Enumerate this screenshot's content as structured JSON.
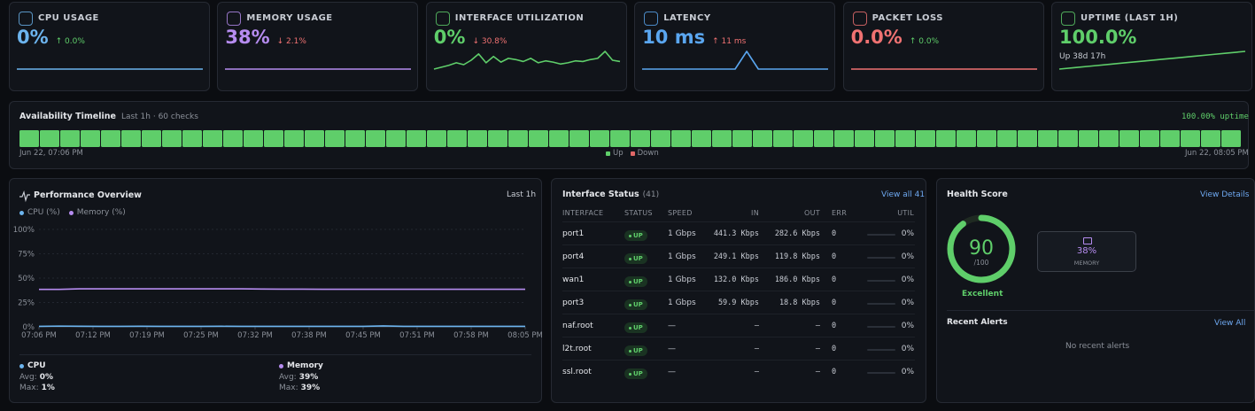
{
  "metrics": [
    {
      "label": "CPU USAGE",
      "value": "0%",
      "delta": "↑ 0.0%",
      "delta_color": "#5fce6a",
      "color": "#6cb4ee",
      "spark": [
        0,
        0,
        0,
        0,
        0,
        0,
        0,
        0,
        0,
        0,
        0,
        0
      ]
    },
    {
      "label": "MEMORY USAGE",
      "value": "38%",
      "delta": "↓ 2.1%",
      "delta_color": "#f07272",
      "color": "#b68cf0",
      "spark": [
        38,
        38,
        38,
        38,
        38,
        38,
        38,
        38,
        38,
        38,
        38,
        38
      ]
    },
    {
      "label": "INTERFACE UTILIZATION",
      "value": "0%",
      "delta": "↓ 30.8%",
      "delta_color": "#f07272",
      "color": "#5fce6a",
      "spark": [
        2,
        5,
        8,
        12,
        9,
        16,
        26,
        12,
        22,
        13,
        19,
        17,
        14,
        19,
        12,
        15,
        13,
        10,
        12,
        15,
        14,
        17,
        19,
        30,
        16,
        14
      ]
    },
    {
      "label": "LATENCY",
      "value": "10 ms",
      "delta": "↑ 11 ms",
      "delta_color": "#f07272",
      "color": "#5aa6f0",
      "spark": [
        10,
        10,
        10,
        10,
        10,
        10,
        10,
        10,
        10,
        21,
        10,
        10,
        10,
        10,
        10,
        10,
        10
      ]
    },
    {
      "label": "PACKET LOSS",
      "value": "0.0%",
      "delta": "↑ 0.0%",
      "delta_color": "#5fce6a",
      "color": "#f07272",
      "spark": [
        0,
        0,
        0,
        0,
        0,
        0,
        0,
        0,
        0,
        0,
        0,
        0
      ]
    },
    {
      "label": "UPTIME (LAST 1H)",
      "value": "100.0%",
      "sub": "Up 38d 17h",
      "color": "#5fce6a",
      "spark": [
        0,
        1,
        2,
        3,
        4,
        5,
        6,
        7,
        8,
        9,
        10,
        11
      ]
    }
  ],
  "availability": {
    "title": "Availability Timeline",
    "subtitle": "Last 1h · 60 checks",
    "summary": "100.00% uptime",
    "start": "Jun 22, 07:06 PM",
    "end": "Jun 22, 08:05 PM",
    "legend": [
      {
        "name": "Up",
        "color": "#5fce6a"
      },
      {
        "name": "Down",
        "color": "#e06767"
      }
    ],
    "checks": [
      "Up",
      "Up",
      "Up",
      "Up",
      "Up",
      "Up",
      "Up",
      "Up",
      "Up",
      "Up",
      "Up",
      "Up",
      "Up",
      "Up",
      "Up",
      "Up",
      "Up",
      "Up",
      "Up",
      "Up",
      "Up",
      "Up",
      "Up",
      "Up",
      "Up",
      "Up",
      "Up",
      "Up",
      "Up",
      "Up",
      "Up",
      "Up",
      "Up",
      "Up",
      "Up",
      "Up",
      "Up",
      "Up",
      "Up",
      "Up",
      "Up",
      "Up",
      "Up",
      "Up",
      "Up",
      "Up",
      "Up",
      "Up",
      "Up",
      "Up",
      "Up",
      "Up",
      "Up",
      "Up",
      "Up",
      "Up",
      "Up",
      "Up",
      "Up",
      "Up"
    ]
  },
  "performance": {
    "title": "Performance Overview",
    "range": "Last 1h",
    "chart_data": {
      "type": "line",
      "xticks": [
        "07:06 PM",
        "07:12 PM",
        "07:19 PM",
        "07:25 PM",
        "07:32 PM",
        "07:38 PM",
        "07:45 PM",
        "07:51 PM",
        "07:58 PM",
        "08:05 PM"
      ],
      "ylim": [
        0,
        100
      ],
      "yticks": [
        {
          "value": 0,
          "label": "0%"
        },
        {
          "value": 25,
          "label": "25%"
        },
        {
          "value": 50,
          "label": "50%"
        },
        {
          "value": 75,
          "label": "75%"
        },
        {
          "value": 100,
          "label": "100%"
        }
      ],
      "grid": true,
      "series": [
        {
          "name": "CPU (%)",
          "color": "#6cb4ee",
          "values": [
            0.5,
            0.8,
            0.6,
            0.5,
            0.5,
            0.6,
            0.5,
            0.5,
            0.5,
            0.6,
            0.5,
            0.5,
            0.5,
            0.5,
            0.5,
            0.5,
            0.5,
            1,
            0.5,
            0.5,
            0.5,
            0.5,
            0.5,
            0.5,
            0.5
          ]
        },
        {
          "name": "Memory (%)",
          "color": "#b68cf0",
          "values": [
            38.5,
            38.5,
            39,
            39,
            39,
            39,
            39,
            39,
            39,
            39,
            39,
            38.8,
            38.7,
            38.7,
            38.6,
            38.6,
            38.6,
            38.6,
            38.6,
            38.6,
            38.6,
            38.6,
            38.6,
            38.6,
            38.6
          ]
        }
      ]
    },
    "stats": [
      {
        "name": "CPU",
        "color": "#6cb4ee",
        "avg_label": "Avg:",
        "avg": "0%",
        "max_label": "Max:",
        "max": "1%"
      },
      {
        "name": "Memory",
        "color": "#b68cf0",
        "avg_label": "Avg:",
        "avg": "39%",
        "max_label": "Max:",
        "max": "39%"
      }
    ]
  },
  "interfaces": {
    "title": "Interface Status",
    "count": "(41)",
    "link": "View all 41",
    "columns": [
      "INTERFACE",
      "STATUS",
      "SPEED",
      "IN",
      "OUT",
      "ERR",
      "UTIL"
    ],
    "rows": [
      [
        "port1",
        "UP",
        "1 Gbps",
        "441.3 Kbps",
        "282.6 Kbps",
        0,
        "0%"
      ],
      [
        "port4",
        "UP",
        "1 Gbps",
        "249.1 Kbps",
        "119.8 Kbps",
        0,
        "0%"
      ],
      [
        "wan1",
        "UP",
        "1 Gbps",
        "132.0 Kbps",
        "186.0 Kbps",
        0,
        "0%"
      ],
      [
        "port3",
        "UP",
        "1 Gbps",
        "59.9 Kbps",
        "18.8 Kbps",
        0,
        "0%"
      ],
      [
        "naf.root",
        "UP",
        "—",
        "—",
        "—",
        0,
        "0%"
      ],
      [
        "l2t.root",
        "UP",
        "—",
        "—",
        "—",
        0,
        "0%"
      ],
      [
        "ssl.root",
        "UP",
        "—",
        "—",
        "—",
        0,
        "0%"
      ]
    ]
  },
  "health": {
    "title": "Health Score",
    "link": "View Details",
    "score": 90,
    "score_max": {
      "value": 100,
      "label": "/100"
    },
    "rating": "Excellent",
    "memory": {
      "value": "38%",
      "label": "MEMORY"
    },
    "alerts_title": "Recent Alerts",
    "alerts_link": "View All",
    "alerts_empty": "No recent alerts"
  }
}
